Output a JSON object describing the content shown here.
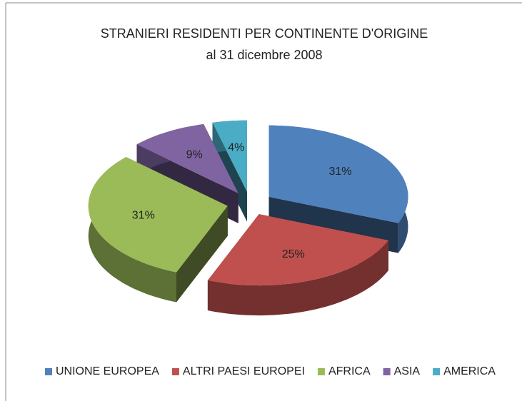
{
  "chart_data": {
    "type": "pie3d",
    "title": "STRANIERI RESIDENTI PER CONTINENTE D'ORIGINE",
    "subtitle": "al 31 dicembre 2008",
    "categories": [
      "UNIONE EUROPEA",
      "ALTRI PAESI EUROPEI",
      "AFRICA",
      "ASIA",
      "AMERICA"
    ],
    "values": [
      31,
      25,
      31,
      9,
      4
    ],
    "value_labels": [
      "31%",
      "25%",
      "31%",
      "9%",
      "4%"
    ],
    "colors": [
      "#4f81bd",
      "#c0504d",
      "#9bbb59",
      "#8064a2",
      "#4bacc6"
    ],
    "legend": "bottom"
  }
}
